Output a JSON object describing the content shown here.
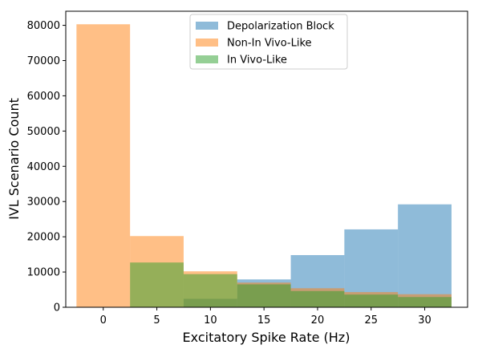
{
  "chart_data": {
    "type": "bar",
    "xlabel": "Excitatory Spike Rate (Hz)",
    "ylabel": "IVL Scenario Count",
    "xlim": [
      -3.5,
      34
    ],
    "ylim": [
      0,
      84000
    ],
    "xticks": [
      0,
      5,
      10,
      15,
      20,
      25,
      30
    ],
    "yticks": [
      0,
      10000,
      20000,
      30000,
      40000,
      50000,
      60000,
      70000,
      80000
    ],
    "bin_edges": [
      -2.5,
      2.5,
      7.5,
      12.5,
      17.5,
      22.5,
      27.5,
      32.5
    ],
    "legend_position": "top-center",
    "series": [
      {
        "name": "Depolarization Block",
        "color": "#1f77b4",
        "values": [
          0,
          0,
          2400,
          7900,
          14800,
          22100,
          29200
        ]
      },
      {
        "name": "Non-In Vivo-Like",
        "color": "#ff7f0e",
        "values": [
          80300,
          20200,
          10200,
          7000,
          5400,
          4300,
          3700
        ]
      },
      {
        "name": "In Vivo-Like",
        "color": "#2ca02c",
        "values": [
          0,
          12700,
          9400,
          6500,
          4600,
          3600,
          2900
        ]
      }
    ]
  }
}
